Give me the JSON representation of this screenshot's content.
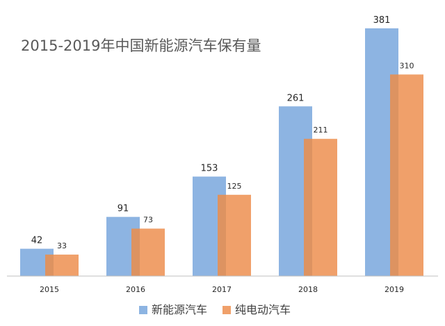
{
  "chart_data": {
    "type": "bar",
    "title": "2015-2019年中国新能源汽车保有量",
    "categories": [
      "2015",
      "2016",
      "2017",
      "2018",
      "2019"
    ],
    "series": [
      {
        "name": "新能源汽车",
        "values": [
          42,
          91,
          153,
          261,
          381
        ],
        "color": "#8db4e2"
      },
      {
        "name": "纯电动汽车",
        "values": [
          33,
          73,
          125,
          211,
          310
        ],
        "color": "#f0a06a"
      }
    ],
    "ylim": [
      0,
      400
    ],
    "grid": false,
    "legend": "bottom-center",
    "xlabel": "",
    "ylabel": ""
  }
}
